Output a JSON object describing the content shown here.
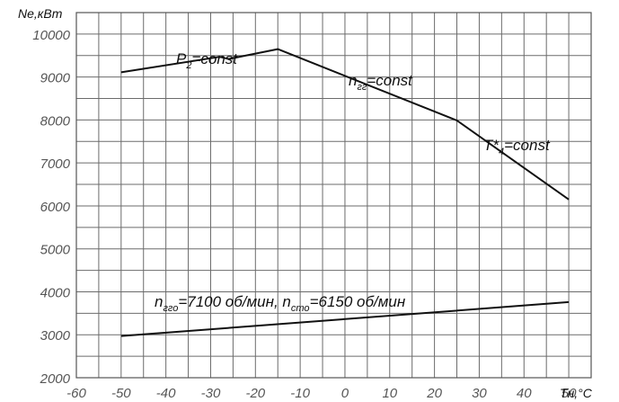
{
  "chart_data": {
    "type": "line",
    "title": "",
    "xlabel": "Tн,°C",
    "ylabel": "Ne,кВт",
    "xlim": [
      -60,
      55
    ],
    "ylim": [
      2000,
      10500
    ],
    "x_ticks": [
      -60,
      -50,
      -40,
      -30,
      -20,
      -10,
      0,
      10,
      20,
      30,
      40,
      50
    ],
    "y_ticks": [
      2000,
      3000,
      4000,
      5000,
      6000,
      7000,
      8000,
      9000,
      10000
    ],
    "grid": true,
    "series": [
      {
        "x": [
          -50,
          -28,
          -26,
          -15,
          25,
          50
        ],
        "y": [
          9110,
          9470,
          9420,
          9650,
          7990,
          6150
        ]
      },
      {
        "x": [
          -50,
          50
        ],
        "y": [
          2970,
          3760
        ]
      }
    ],
    "annotations": [
      {
        "text": "P",
        "sub": "2",
        "rest": "=const"
      },
      {
        "text": "n",
        "sub": "гг",
        "rest": "=const"
      },
      {
        "text": "T*",
        "sub": "4",
        "rest": "=const"
      },
      {
        "text": "n",
        "sub": "гго",
        "rest": "=7100 об/мин, n",
        "sub2": "сто",
        "rest2": "=6150 об/мин"
      }
    ]
  }
}
